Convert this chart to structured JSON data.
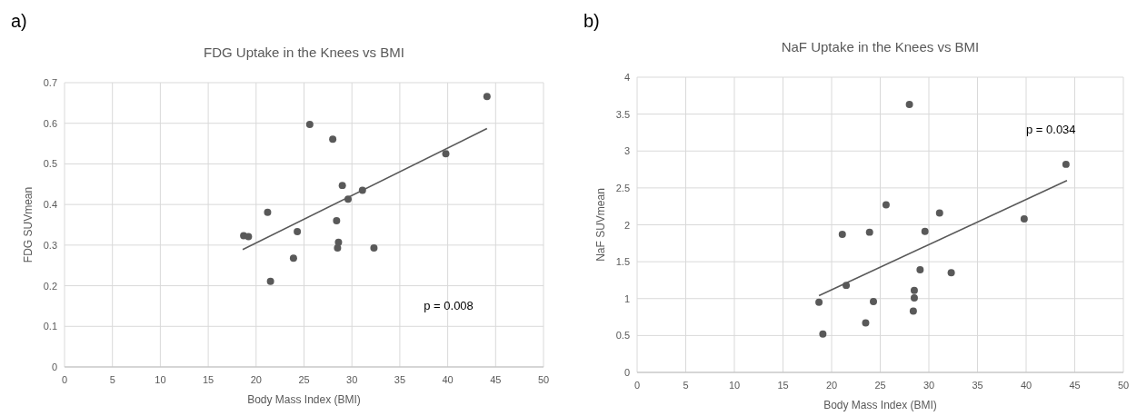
{
  "chart_data": [
    {
      "type": "scatter",
      "title": "FDG Uptake in the Knees vs BMI",
      "xlabel": "Body Mass Index (BMI)",
      "ylabel": "FDG SUVmean",
      "annotations": [
        "a)",
        "p = 0.008"
      ],
      "xlim": [
        0,
        50
      ],
      "xticks": [
        0,
        5,
        10,
        15,
        20,
        25,
        30,
        35,
        40,
        45,
        50
      ],
      "ylim": [
        0,
        0.7
      ],
      "yticks": [
        0,
        0.1,
        0.2,
        0.3,
        0.4,
        0.5,
        0.6,
        0.7
      ],
      "grid": true,
      "series": [
        {
          "color": "#595959",
          "marker": "circle",
          "x": [
            18.7,
            19.2,
            21.2,
            21.5,
            23.9,
            24.3,
            25.6,
            28.0,
            28.4,
            28.5,
            28.6,
            29.0,
            29.6,
            31.1,
            32.3,
            39.8,
            44.1
          ],
          "values": [
            0.323,
            0.321,
            0.381,
            0.211,
            0.268,
            0.333,
            0.597,
            0.561,
            0.36,
            0.293,
            0.307,
            0.447,
            0.413,
            0.435,
            0.293,
            0.525,
            0.666
          ]
        },
        {
          "type": "line",
          "color": "#595959",
          "x": [
            18.6,
            44.1
          ],
          "values": [
            0.289,
            0.587
          ]
        }
      ]
    },
    {
      "type": "scatter",
      "title": "NaF Uptake in the Knees vs BMI",
      "xlabel": "Body Mass Index (BMI)",
      "ylabel": "NaF SUVmean",
      "annotations": [
        "b)",
        "p = 0.034"
      ],
      "xlim": [
        0,
        50
      ],
      "xticks": [
        0,
        5,
        10,
        15,
        20,
        25,
        30,
        35,
        40,
        45,
        50
      ],
      "ylim": [
        0,
        4
      ],
      "yticks": [
        0,
        0.5,
        1,
        1.5,
        2,
        2.5,
        3,
        3.5,
        4
      ],
      "grid": true,
      "series": [
        {
          "color": "#595959",
          "marker": "circle",
          "x": [
            18.7,
            19.1,
            21.1,
            21.5,
            23.5,
            23.9,
            24.3,
            25.6,
            28.0,
            28.4,
            28.5,
            28.5,
            29.1,
            29.6,
            31.1,
            32.3,
            39.8,
            44.1
          ],
          "values": [
            0.95,
            0.52,
            1.87,
            1.18,
            0.67,
            1.9,
            0.96,
            2.27,
            3.63,
            0.83,
            1.11,
            1.01,
            1.39,
            1.91,
            2.16,
            1.35,
            2.08,
            2.82
          ]
        },
        {
          "type": "line",
          "color": "#595959",
          "x": [
            18.7,
            44.2
          ],
          "values": [
            1.04,
            2.6
          ]
        }
      ]
    }
  ]
}
